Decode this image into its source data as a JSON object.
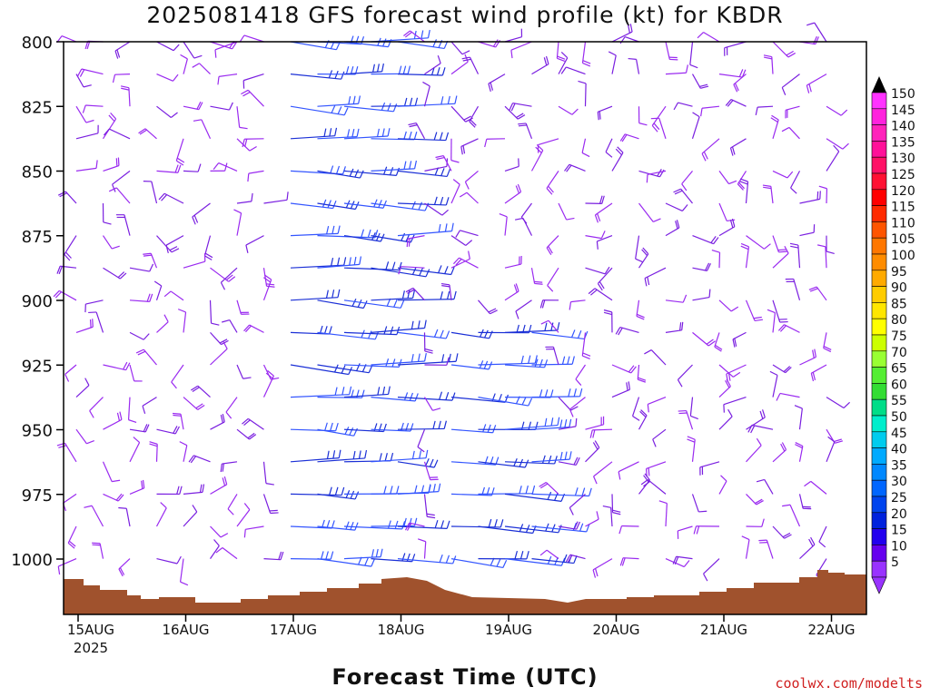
{
  "title": "2025081418 GFS forecast wind profile (kt) for KBDR",
  "x_axis_title": "Forecast Time (UTC)",
  "watermark": "coolwx.com/modelts",
  "colors": {
    "terrain": "#a0522d",
    "frame": "#000000",
    "text": "#111111",
    "watermark": "#d02020"
  },
  "chart_data": {
    "type": "wind_barb_time_height",
    "title": "2025081418 GFS forecast wind profile (kt) for KBDR",
    "xlabel": "Forecast Time (UTC)",
    "ylabel": "",
    "y_levels": [
      800,
      825,
      850,
      875,
      900,
      925,
      950,
      975,
      1000
    ],
    "y_reversed": true,
    "x_ticks": [
      {
        "label": "15AUG",
        "sub": "2025"
      },
      {
        "label": "16AUG",
        "sub": ""
      },
      {
        "label": "17AUG",
        "sub": ""
      },
      {
        "label": "18AUG",
        "sub": ""
      },
      {
        "label": "19AUG",
        "sub": ""
      },
      {
        "label": "20AUG",
        "sub": ""
      },
      {
        "label": "21AUG",
        "sub": ""
      },
      {
        "label": "22AUG",
        "sub": ""
      }
    ],
    "colorbar": {
      "labels": [
        150,
        145,
        140,
        135,
        130,
        125,
        120,
        115,
        110,
        105,
        100,
        95,
        90,
        85,
        80,
        75,
        70,
        65,
        60,
        55,
        50,
        45,
        40,
        35,
        30,
        25,
        20,
        15,
        10,
        5
      ],
      "colors": [
        "#ff33ff",
        "#ff22dd",
        "#ff22bb",
        "#ff1199",
        "#ff1166",
        "#ff1133",
        "#ff0000",
        "#ff2a00",
        "#ff5500",
        "#ff7700",
        "#ff8c00",
        "#ffaa00",
        "#ffcc00",
        "#ffe600",
        "#ffff00",
        "#ccff00",
        "#99ff33",
        "#55ee33",
        "#33dd33",
        "#00dd88",
        "#00eecc",
        "#00ccee",
        "#00aaff",
        "#0088ff",
        "#0066ff",
        "#0044ee",
        "#0022dd",
        "#2200ee",
        "#6600ee",
        "#9933ff"
      ]
    },
    "barb_rows": [
      {
        "level": 800,
        "pattern": "mixed: light purple barbs, strong blue westerlies mid-period, purple easterlies late"
      },
      {
        "level": 1000,
        "pattern": "light purple barbs, stronger blue northerlies around 18-19AUG"
      }
    ]
  }
}
